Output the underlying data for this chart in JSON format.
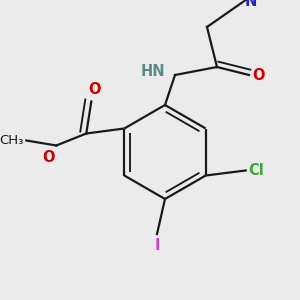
{
  "background_color": "#ebebeb",
  "bond_color": "#1a1a1a",
  "bond_width": 1.6,
  "dbo": 0.018,
  "figsize": [
    3.0,
    3.0
  ],
  "dpi": 100,
  "xlim": [
    0,
    300
  ],
  "ylim": [
    0,
    300
  ]
}
